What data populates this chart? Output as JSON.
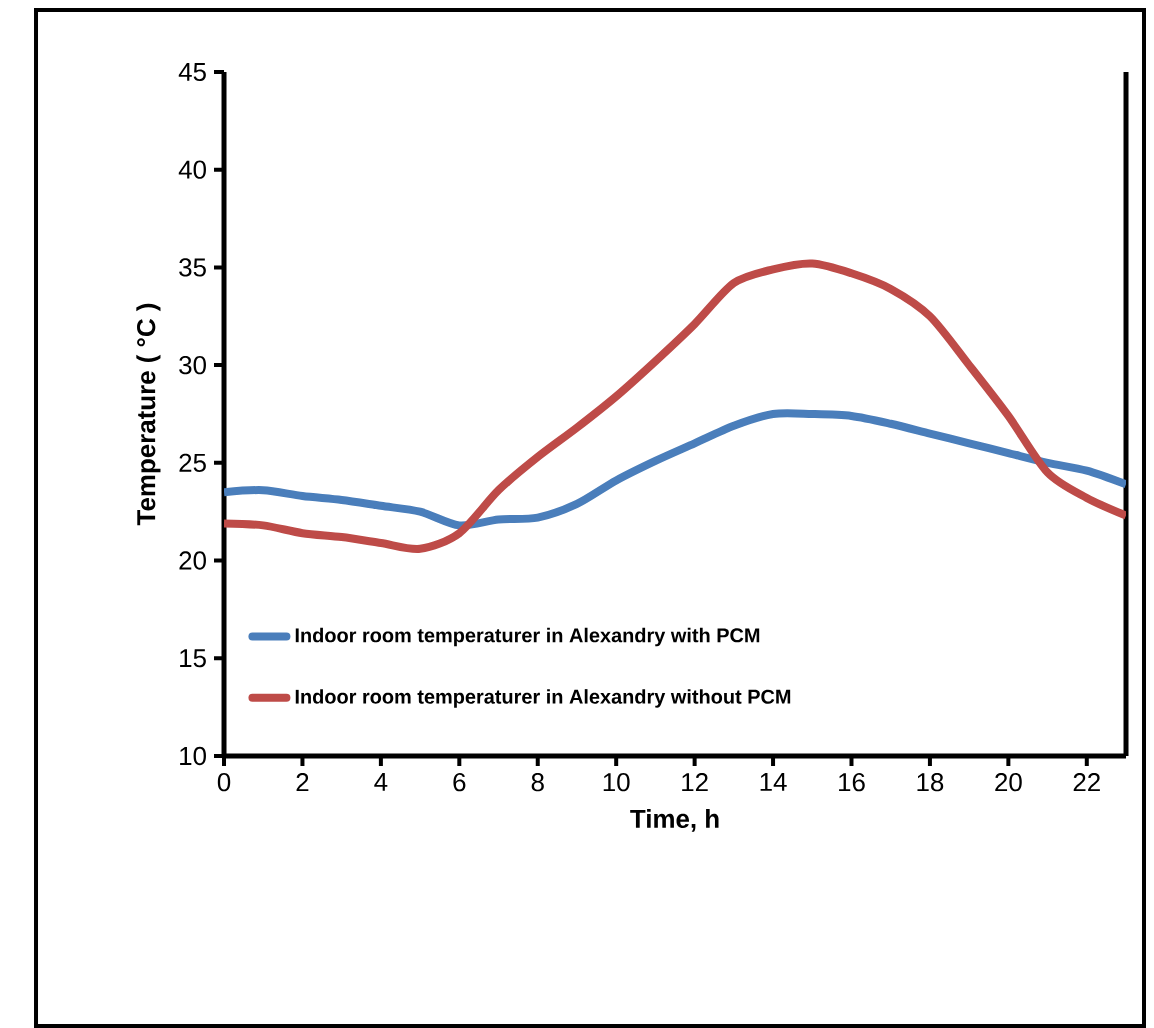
{
  "chart_data": {
    "type": "line",
    "xlabel": "Time, h",
    "ylabel": "Temperature ( °C )",
    "x": [
      0,
      1,
      2,
      3,
      4,
      5,
      6,
      7,
      8,
      9,
      10,
      11,
      12,
      13,
      14,
      15,
      16,
      17,
      18,
      19,
      20,
      21,
      22,
      23
    ],
    "series": [
      {
        "name": "Indoor room temperaturer in Alexandry with PCM",
        "color": "#4a7ebb",
        "values": [
          23.5,
          23.6,
          23.3,
          23.1,
          22.8,
          22.5,
          21.8,
          22.1,
          22.2,
          22.9,
          24.1,
          25.1,
          26.0,
          26.9,
          27.5,
          27.5,
          27.4,
          27.0,
          26.5,
          26.0,
          25.5,
          25.0,
          24.6,
          23.9
        ]
      },
      {
        "name": "Indoor room temperaturer in Alexandry without PCM",
        "color": "#be4b48",
        "values": [
          21.9,
          21.8,
          21.4,
          21.2,
          20.9,
          20.6,
          21.4,
          23.6,
          25.3,
          26.8,
          28.4,
          30.2,
          32.1,
          34.2,
          34.9,
          35.2,
          34.7,
          33.9,
          32.5,
          30.0,
          27.4,
          24.5,
          23.2,
          22.3
        ]
      }
    ],
    "xlim": [
      0,
      23
    ],
    "xticks": [
      0,
      2,
      4,
      6,
      8,
      10,
      12,
      14,
      16,
      18,
      20,
      22
    ],
    "ylim": [
      10,
      45
    ],
    "yticks": [
      10,
      15,
      20,
      25,
      30,
      35,
      40,
      45
    ],
    "grid": false,
    "legend": "bottom left",
    "marker": "none",
    "line_style": "solid"
  }
}
